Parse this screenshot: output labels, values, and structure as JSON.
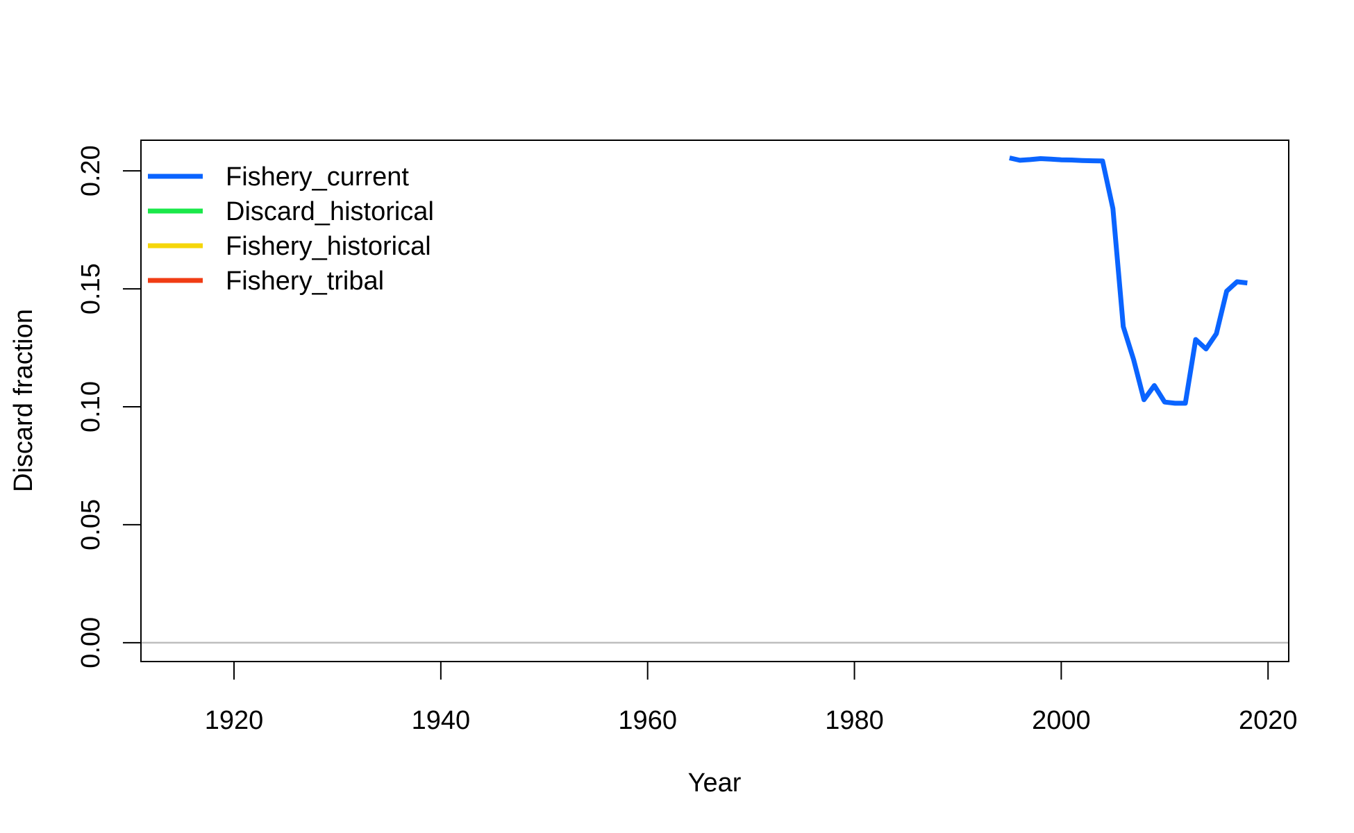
{
  "chart_data": {
    "type": "line",
    "title": "",
    "xlabel": "Year",
    "ylabel": "Discard fraction",
    "xlim": [
      1911,
      2022
    ],
    "ylim": [
      -0.008,
      0.213
    ],
    "x_ticks": [
      1920,
      1940,
      1960,
      1980,
      2000,
      2020
    ],
    "x_tick_labels": [
      "1920",
      "1940",
      "1960",
      "1980",
      "2000",
      "2020"
    ],
    "y_ticks": [
      0.0,
      0.05,
      0.1,
      0.15,
      0.2
    ],
    "y_tick_labels": [
      "0.00",
      "0.05",
      "0.10",
      "0.15",
      "0.20"
    ],
    "grid": false,
    "reference_line": {
      "y": 0,
      "color": "#BEBEBE"
    },
    "legend": {
      "position": "top-left",
      "entries": [
        {
          "label": "Fishery_current",
          "color": "#0A64FF"
        },
        {
          "label": "Discard_historical",
          "color": "#1AE84A"
        },
        {
          "label": "Fishery_historical",
          "color": "#F5D60A"
        },
        {
          "label": "Fishery_tribal",
          "color": "#F03C14"
        }
      ]
    },
    "series": [
      {
        "name": "Fishery_current",
        "color": "#0A64FF",
        "x": [
          1995,
          1996,
          1997,
          1998,
          1999,
          2000,
          2001,
          2002,
          2003,
          2004,
          2005,
          2006,
          2007,
          2008,
          2009,
          2010,
          2011,
          2012,
          2013,
          2014,
          2015,
          2016,
          2017,
          2018
        ],
        "y": [
          0.2055,
          0.2045,
          0.2048,
          0.2052,
          0.205,
          0.2047,
          0.2046,
          0.2044,
          0.2043,
          0.2042,
          0.184,
          0.134,
          0.12,
          0.103,
          0.109,
          0.102,
          0.1015,
          0.1015,
          0.1285,
          0.1245,
          0.131,
          0.149,
          0.153,
          0.1525
        ]
      },
      {
        "name": "Discard_historical",
        "color": "#1AE84A",
        "x": [],
        "y": []
      },
      {
        "name": "Fishery_historical",
        "color": "#F5D60A",
        "x": [],
        "y": []
      },
      {
        "name": "Fishery_tribal",
        "color": "#F03C14",
        "x": [],
        "y": []
      }
    ]
  }
}
